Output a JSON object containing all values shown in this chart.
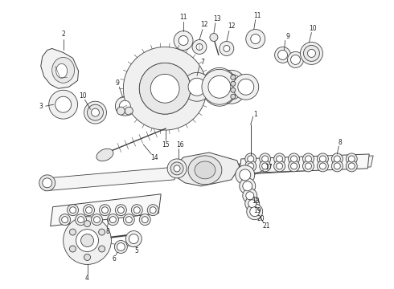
{
  "bg_color": "#ffffff",
  "lc": "#404040",
  "lc2": "#606060",
  "fig_width": 4.9,
  "fig_height": 3.6,
  "dpi": 100,
  "fs": 5.5
}
